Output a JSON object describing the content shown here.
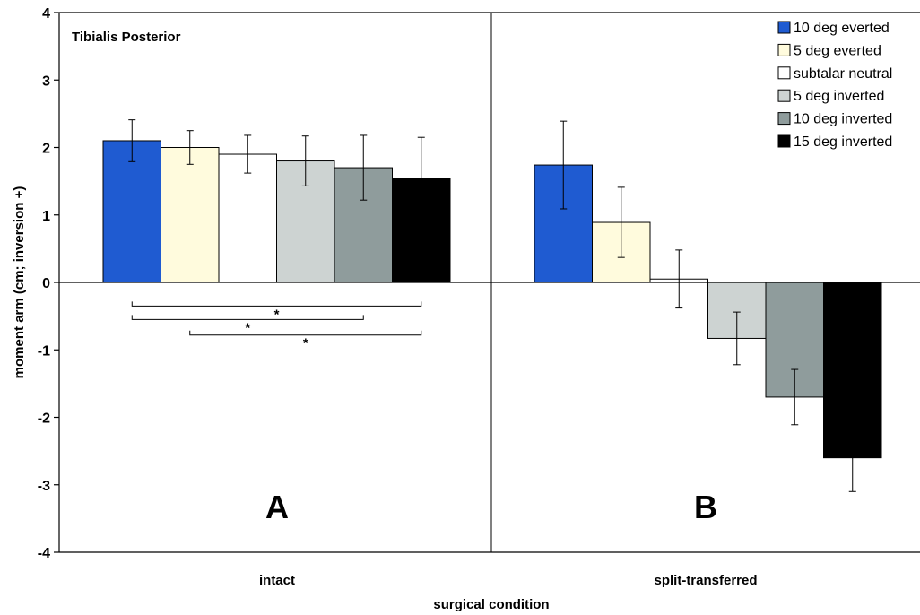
{
  "chart_data": {
    "type": "bar",
    "title": "Tibialis Posterior",
    "xlabel": "surgical condition",
    "ylabel": "moment arm (cm; inversion +)",
    "ylim": [
      -4,
      4
    ],
    "yticks": [
      "4",
      "3",
      "2",
      "1",
      "0",
      "-1",
      "-2",
      "-3",
      "-4"
    ],
    "categories": [
      "intact",
      "split-transferred"
    ],
    "panel_labels": [
      "A",
      "B"
    ],
    "legend_position": "top-right",
    "grid": false,
    "series": [
      {
        "name": "10 deg everted",
        "color": "#1f5bd1",
        "values": [
          2.1,
          1.74
        ],
        "errors": [
          0.31,
          0.65
        ]
      },
      {
        "name": "5 deg everted",
        "color": "#fffbdd",
        "values": [
          2.0,
          0.89
        ],
        "errors": [
          0.25,
          0.52
        ]
      },
      {
        "name": "subtalar neutral",
        "color": "#ffffff",
        "values": [
          1.9,
          0.05
        ],
        "errors": [
          0.28,
          0.43
        ]
      },
      {
        "name": "5 deg inverted",
        "color": "#cdd3d2",
        "values": [
          1.8,
          -0.83
        ],
        "errors": [
          0.37,
          0.39
        ]
      },
      {
        "name": "10 deg inverted",
        "color": "#8f9c9c",
        "values": [
          1.7,
          -1.7
        ],
        "errors": [
          0.48,
          0.41
        ]
      },
      {
        "name": "15 deg inverted",
        "color": "#000000",
        "values": [
          1.54,
          -2.6
        ],
        "errors": [
          0.61,
          0.5
        ]
      }
    ],
    "significance": [
      {
        "from_series": 0,
        "to_series": 5,
        "category": 0,
        "y": -0.35,
        "label": "*"
      },
      {
        "from_series": 0,
        "to_series": 4,
        "category": 0,
        "y": -0.55,
        "label": "*"
      },
      {
        "from_series": 1,
        "to_series": 5,
        "category": 0,
        "y": -0.78,
        "label": "*"
      }
    ]
  }
}
